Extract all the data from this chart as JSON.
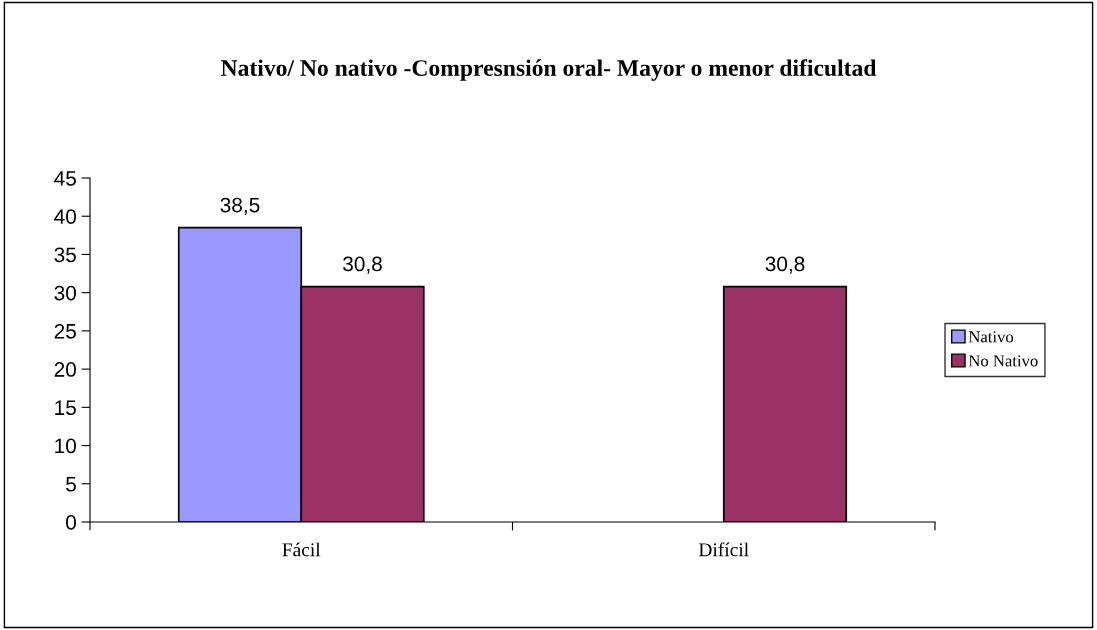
{
  "chart_data": {
    "type": "bar",
    "title": "Nativo/ No nativo -Compresnsión oral- Mayor o menor dificultad",
    "categories": [
      "Fácil",
      "Difícil"
    ],
    "series": [
      {
        "name": "Nativo",
        "color": "#9999ff",
        "values": [
          38.5,
          null
        ],
        "value_labels": [
          "38,5",
          null
        ]
      },
      {
        "name": "No Nativo",
        "color": "#993366",
        "values": [
          30.8,
          30.8
        ],
        "value_labels": [
          "30,8",
          "30,8"
        ]
      }
    ],
    "ylim": [
      0,
      45
    ],
    "yticks": [
      0,
      5,
      10,
      15,
      20,
      25,
      30,
      35,
      40,
      45
    ],
    "grid": false,
    "legend": "right"
  }
}
